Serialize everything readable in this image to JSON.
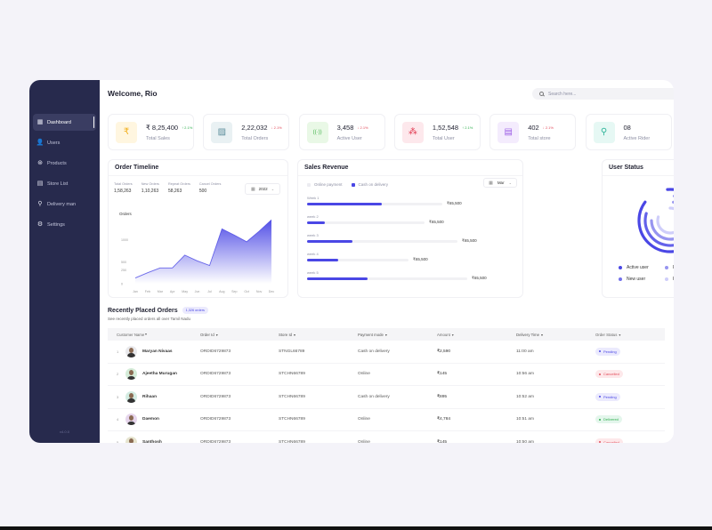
{
  "sidebar": {
    "items": [
      {
        "label": "Dashboard",
        "icon": "grid-icon",
        "active": true
      },
      {
        "label": "Users",
        "icon": "user-icon"
      },
      {
        "label": "Products",
        "icon": "box-icon"
      },
      {
        "label": "Store List",
        "icon": "store-icon"
      },
      {
        "label": "Delivery man",
        "icon": "bike-icon"
      },
      {
        "label": "Settings",
        "icon": "gear-icon"
      }
    ],
    "version": "v4.0.0"
  },
  "header": {
    "welcome": "Welcome, Rio",
    "search_placeholder": "Search here..."
  },
  "stats": [
    {
      "value": "₹ 8,25,400",
      "change": "↑ 2.1%",
      "direction": "up",
      "label": "Total Sales",
      "icon": "rupee-icon",
      "icon_bg": "#fff6e0",
      "icon_color": "#f2b01e"
    },
    {
      "value": "2,22,032",
      "change": "↓ 2.1%",
      "direction": "down",
      "label": "Total Orders",
      "icon": "clipboard-icon",
      "icon_bg": "#e9f1f3",
      "icon_color": "#5a8c9a"
    },
    {
      "value": "3,458",
      "change": "↓ 2.1%",
      "direction": "down",
      "label": "Active User",
      "icon": "signal-icon",
      "icon_bg": "#e9f8e6",
      "icon_color": "#42b34a"
    },
    {
      "value": "1,52,548",
      "change": "↑ 2.1%",
      "direction": "up",
      "label": "Total User",
      "icon": "users-icon",
      "icon_bg": "#fde8ec",
      "icon_color": "#e23b52"
    },
    {
      "value": "402",
      "change": "↓ 2.1%",
      "direction": "down",
      "label": "Total store",
      "icon": "store-icon",
      "icon_bg": "#f4ecfd",
      "icon_color": "#9b5de5"
    },
    {
      "value": "08",
      "change": "",
      "direction": "",
      "label": "Active Rider",
      "icon": "bike-icon",
      "icon_bg": "#e6f8f4",
      "icon_color": "#2fb59a"
    }
  ],
  "order_timeline": {
    "title": "Order Timeline",
    "stats": [
      {
        "label": "Total Orders",
        "value": "1,58,263"
      },
      {
        "label": "New Orders",
        "value": "1,10,263"
      },
      {
        "label": "Repeat Orders",
        "value": "58,263"
      },
      {
        "label": "Cancel Orders",
        "value": "500"
      }
    ],
    "year": "2022"
  },
  "sales_revenue": {
    "title": "Sales Revenue",
    "legend": [
      "Online payment",
      "Cash on delivery"
    ],
    "month": "Mar",
    "weeks": [
      {
        "label": "Week 1",
        "value": "₹65,500",
        "pct": 0.38,
        "track": 0.69
      },
      {
        "label": "week 2",
        "value": "₹65,500",
        "pct": 0.09,
        "track": 0.6
      },
      {
        "label": "week 3",
        "value": "₹65,500",
        "pct": 0.23,
        "track": 0.77
      },
      {
        "label": "week 4",
        "value": "₹65,500",
        "pct": 0.16,
        "track": 0.52
      },
      {
        "label": "week 5",
        "value": "₹65,500",
        "pct": 0.31,
        "track": 0.82
      }
    ]
  },
  "user_status": {
    "title": "User Status",
    "legend": [
      {
        "label": "Active user",
        "color": "#4a47e5"
      },
      {
        "label": "Purchased user",
        "color": "#9795f0"
      },
      {
        "label": "New user",
        "color": "#7371ec"
      },
      {
        "label": "Repurchased user",
        "color": "#cfcefa"
      }
    ]
  },
  "orders": {
    "title": "Recently Placed Orders",
    "badge": "1,326 orders",
    "subtitle": "See recently placed orders all over Tamil Nadu",
    "columns": [
      "Customer Name",
      "Order Id",
      "Store Id",
      "Payment mode",
      "Amount",
      "Delivery Time",
      "Order Status"
    ],
    "rows": [
      {
        "idx": "1",
        "name": "Maryan Nivaas",
        "order_id": "ORDID6729873",
        "store_id": "STNGL66789",
        "payment": "Cash on delivery",
        "amount": "₹2,590",
        "time": "11:00 am",
        "status": "Pending",
        "av_bg": "#e9e9ec"
      },
      {
        "idx": "2",
        "name": "Ajeetha Murugan",
        "order_id": "ORDID6729873",
        "store_id": "STCHN66789",
        "payment": "Online",
        "amount": "₹145",
        "time": "10:56 am",
        "status": "Cancelled",
        "av_bg": "#d5ecd9"
      },
      {
        "idx": "3",
        "name": "Rihaan",
        "order_id": "ORDID6729873",
        "store_id": "STCHN66789",
        "payment": "Cash on delivery",
        "amount": "₹895",
        "time": "10:52 am",
        "status": "Pending",
        "av_bg": "#d3ece2"
      },
      {
        "idx": "4",
        "name": "Daemon",
        "order_id": "ORDID6729873",
        "store_id": "STCHN66789",
        "payment": "Online",
        "amount": "₹4,784",
        "time": "10:51 am",
        "status": "Delivered",
        "av_bg": "#e6d5ec"
      },
      {
        "idx": "5",
        "name": "Santhosh",
        "order_id": "ORDID6729873",
        "store_id": "STCHN66789",
        "payment": "Online",
        "amount": "₹145",
        "time": "10:50 am",
        "status": "Cancelled",
        "av_bg": "#e6e4cf"
      }
    ]
  },
  "chart_data": {
    "type": "area",
    "title": "Orders",
    "categories": [
      "Jan",
      "Feb",
      "Mar",
      "Apr",
      "May",
      "Jun",
      "Jul",
      "Aug",
      "Sep",
      "Oct",
      "Nov",
      "Dec"
    ],
    "values": [
      120,
      230,
      330,
      330,
      600,
      480,
      380,
      1150,
      1020,
      880,
      1100,
      1340
    ],
    "yticks": [
      "0",
      "250",
      "500",
      "1000"
    ],
    "ylabel": "Orders",
    "color": "#4a47e5"
  }
}
